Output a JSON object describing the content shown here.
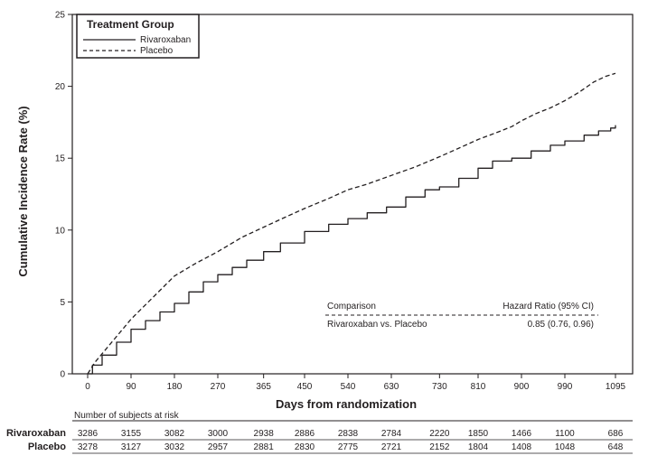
{
  "chart_data": {
    "type": "line",
    "xlabel": "Days from randomization",
    "ylabel": "Cumulative Incidence Rate (%)",
    "xlim": [
      0,
      1095
    ],
    "ylim": [
      0,
      25
    ],
    "x_ticks": [
      0,
      90,
      180,
      270,
      365,
      450,
      540,
      630,
      730,
      810,
      900,
      990,
      1095
    ],
    "y_ticks": [
      0,
      5,
      10,
      15,
      20,
      25
    ],
    "legend": {
      "title": "Treatment Group",
      "position": "top-left"
    },
    "series": [
      {
        "name": "Rivaroxaban",
        "style": "solid",
        "color": "#231f20",
        "points": [
          [
            0,
            0
          ],
          [
            10,
            0.6
          ],
          [
            30,
            1.3
          ],
          [
            60,
            2.2
          ],
          [
            90,
            3.1
          ],
          [
            120,
            3.7
          ],
          [
            150,
            4.3
          ],
          [
            180,
            4.9
          ],
          [
            210,
            5.7
          ],
          [
            240,
            6.4
          ],
          [
            270,
            6.9
          ],
          [
            300,
            7.4
          ],
          [
            330,
            7.9
          ],
          [
            365,
            8.5
          ],
          [
            400,
            9.1
          ],
          [
            450,
            9.9
          ],
          [
            500,
            10.4
          ],
          [
            540,
            10.8
          ],
          [
            580,
            11.2
          ],
          [
            620,
            11.6
          ],
          [
            660,
            12.3
          ],
          [
            700,
            12.8
          ],
          [
            730,
            13.0
          ],
          [
            770,
            13.6
          ],
          [
            810,
            14.3
          ],
          [
            840,
            14.8
          ],
          [
            880,
            15.0
          ],
          [
            920,
            15.5
          ],
          [
            960,
            15.9
          ],
          [
            990,
            16.2
          ],
          [
            1030,
            16.6
          ],
          [
            1060,
            16.9
          ],
          [
            1085,
            17.1
          ],
          [
            1095,
            17.3
          ]
        ]
      },
      {
        "name": "Placebo",
        "style": "dashed",
        "color": "#231f20",
        "points": [
          [
            0,
            0
          ],
          [
            15,
            0.8
          ],
          [
            45,
            2.0
          ],
          [
            90,
            3.8
          ],
          [
            135,
            5.3
          ],
          [
            180,
            6.8
          ],
          [
            225,
            7.7
          ],
          [
            270,
            8.5
          ],
          [
            320,
            9.5
          ],
          [
            365,
            10.2
          ],
          [
            410,
            10.9
          ],
          [
            450,
            11.5
          ],
          [
            500,
            12.2
          ],
          [
            540,
            12.8
          ],
          [
            580,
            13.2
          ],
          [
            630,
            13.8
          ],
          [
            680,
            14.4
          ],
          [
            730,
            15.1
          ],
          [
            770,
            15.7
          ],
          [
            810,
            16.3
          ],
          [
            850,
            16.8
          ],
          [
            880,
            17.2
          ],
          [
            900,
            17.6
          ],
          [
            930,
            18.1
          ],
          [
            960,
            18.5
          ],
          [
            990,
            19.0
          ],
          [
            1020,
            19.6
          ],
          [
            1050,
            20.3
          ],
          [
            1075,
            20.7
          ],
          [
            1095,
            20.9
          ]
        ]
      }
    ],
    "annotation": {
      "header_left": "Comparison",
      "header_right": "Hazard Ratio (95% CI)",
      "row_left": "Rivaroxaban vs. Placebo",
      "row_right": "0.85 (0.76, 0.96)"
    },
    "risk_table": {
      "header": "Number of subjects at risk",
      "rows": [
        {
          "name": "Rivaroxaban",
          "values": [
            "3286",
            "3155",
            "3082",
            "3000",
            "2938",
            "2886",
            "2838",
            "2784",
            "2220",
            "1850",
            "1466",
            "1100",
            "686"
          ]
        },
        {
          "name": "Placebo",
          "values": [
            "3278",
            "3127",
            "3032",
            "2957",
            "2881",
            "2830",
            "2775",
            "2721",
            "2152",
            "1804",
            "1408",
            "1048",
            "648"
          ]
        }
      ]
    }
  }
}
